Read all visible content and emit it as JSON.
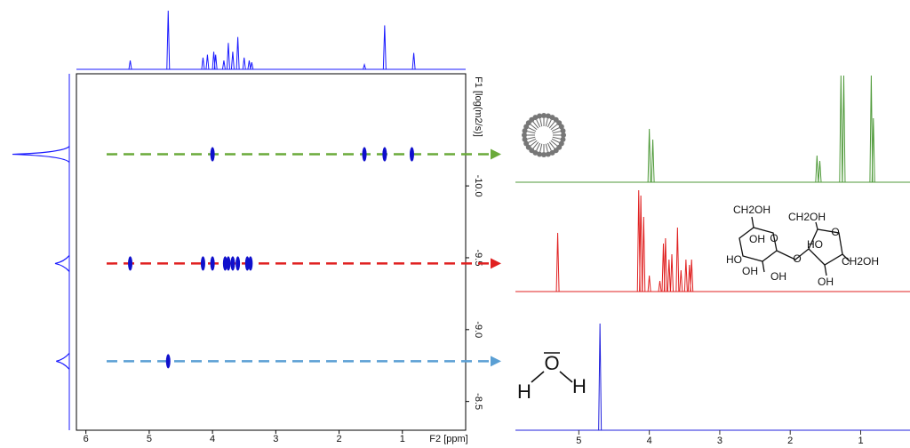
{
  "chart_data": [
    {
      "type": "dosy",
      "x_label": "F2 [ppm]",
      "y_label": "F1 [log(m2/s)]",
      "xlim": [
        6.15,
        0
      ],
      "xticks": [
        6,
        5,
        4,
        3,
        2,
        1
      ],
      "ylim": [
        -10.78,
        -8.3
      ],
      "yticks": [
        {
          "value": -10.0,
          "label": "-10.0"
        },
        -9.5,
        {
          "value": -9.0,
          "label": "-9.0"
        },
        -8.5
      ],
      "peak_color": "#1010cc",
      "series": [
        {
          "color": "#6aaa3a",
          "diffusion": -10.22,
          "x": [
            4.0,
            1.6,
            1.28,
            0.85
          ]
        },
        {
          "color": "#e02020",
          "diffusion": -9.46,
          "x": [
            5.3,
            4.15,
            4.0,
            3.8,
            3.75,
            3.68,
            3.6,
            3.45,
            3.4
          ]
        },
        {
          "color": "#5a9fd4",
          "diffusion": -8.78,
          "x": [
            4.7
          ]
        }
      ]
    },
    {
      "type": "spectrum",
      "color": "#1a1aff",
      "xlim": [
        6.15,
        0
      ],
      "ylim": [
        0,
        1
      ],
      "x": [
        5.3,
        4.7,
        4.15,
        4.08,
        3.98,
        3.95,
        3.82,
        3.75,
        3.68,
        3.6,
        3.5,
        3.42,
        3.38,
        1.6,
        1.28,
        0.82
      ],
      "values": [
        0.15,
        1.0,
        0.2,
        0.25,
        0.3,
        0.25,
        0.15,
        0.45,
        0.3,
        0.55,
        0.2,
        0.15,
        0.12,
        0.08,
        0.75,
        0.28
      ]
    },
    {
      "type": "projection",
      "color": "#1a1aff",
      "ylim": [
        0,
        1
      ],
      "x": [
        -10.22,
        -9.46,
        -8.78
      ],
      "values": [
        1.0,
        0.25,
        0.23
      ]
    },
    {
      "type": "spectrum",
      "color": "#4f9a3a",
      "xlim": [
        5.9,
        0.3
      ],
      "ylim": [
        0,
        1
      ],
      "x": [
        4.0,
        3.95,
        1.62,
        1.58,
        1.28,
        1.24,
        0.85,
        0.82
      ],
      "values": [
        0.5,
        0.4,
        0.25,
        0.2,
        1.0,
        1.0,
        1.0,
        0.6
      ]
    },
    {
      "type": "spectrum",
      "color": "#e02020",
      "xlim": [
        5.9,
        0.3
      ],
      "ylim": [
        0,
        1
      ],
      "x": [
        5.3,
        4.15,
        4.12,
        4.08,
        4.0,
        3.85,
        3.8,
        3.77,
        3.72,
        3.68,
        3.6,
        3.55,
        3.48,
        3.43,
        3.4
      ],
      "values": [
        0.55,
        0.95,
        0.9,
        0.7,
        0.15,
        0.1,
        0.45,
        0.5,
        0.3,
        0.35,
        0.6,
        0.2,
        0.3,
        0.25,
        0.3
      ]
    },
    {
      "type": "spectrum",
      "color": "#2020dd",
      "xlim": [
        5.9,
        0.3
      ],
      "ylim": [
        0,
        1
      ],
      "xticks": [
        5,
        4,
        3,
        2,
        1
      ],
      "x": [
        4.7
      ],
      "values": [
        1.0
      ]
    }
  ],
  "sucrose_labels": [
    "CH2OH",
    "OH",
    "HO",
    "OH",
    "OH",
    "O",
    "CH2OH",
    "HO",
    "OH",
    "CH2OH",
    "O",
    "O"
  ],
  "water_labels": [
    "H",
    "O",
    "H"
  ]
}
